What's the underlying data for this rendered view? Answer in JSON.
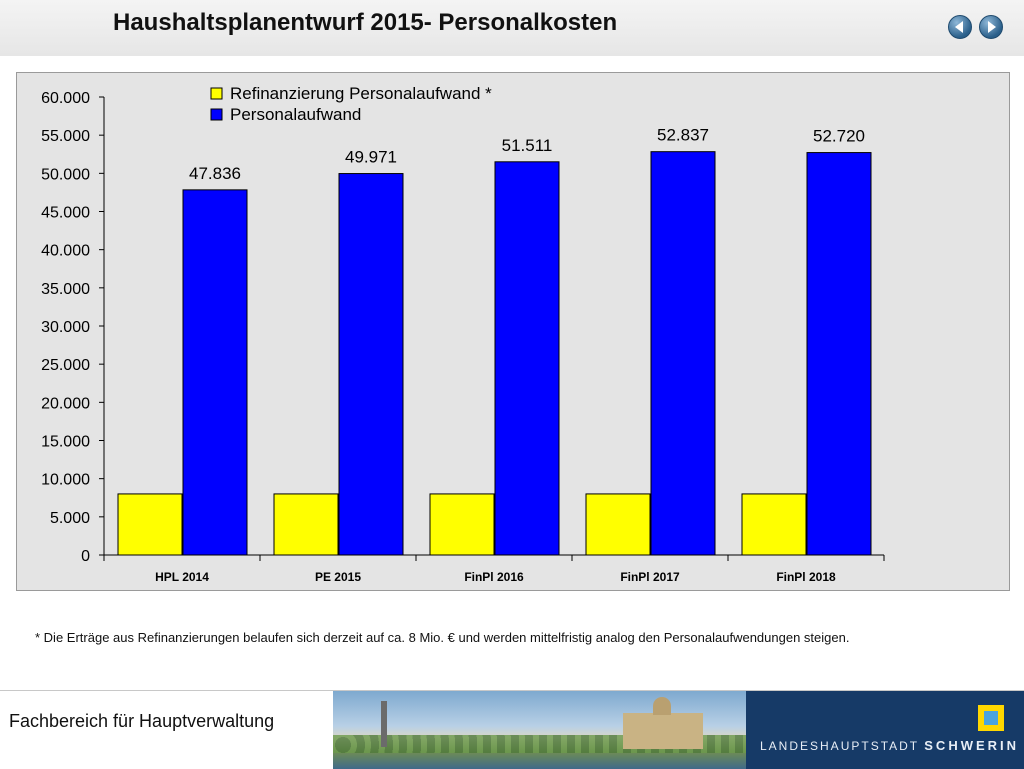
{
  "title": "Haushaltsplanentwurf 2015- Personalkosten",
  "nav": {
    "back_icon": "arrow-left-icon",
    "forward_icon": "arrow-right-icon"
  },
  "footnote": "* Die Erträge aus Refinanzierungen belaufen sich derzeit auf ca. 8 Mio. € und werden mittelfristig analog den Personalaufwendungen steigen.",
  "footer": {
    "department": "Fachbereich für Hauptverwaltung",
    "brand_prefix": "LANDESHAUPTSTADT",
    "brand_name": "SCHWERIN"
  },
  "colors": {
    "refinanzierung": "#ffff00",
    "personalaufwand": "#0000ff",
    "plot_bg": "#e4e4e4",
    "header_bg": "#eeeeee",
    "footer_brand_bg": "#163a67"
  },
  "chart_data": {
    "type": "bar",
    "categories": [
      "HPL 2014",
      "PE 2015",
      "FinPl 2016",
      "FinPl 2017",
      "FinPl 2018"
    ],
    "series": [
      {
        "name": "Refinanzierung Personalaufwand *",
        "values": [
          8000,
          8000,
          8000,
          8000,
          8000
        ],
        "color": "#ffff00"
      },
      {
        "name": "Personalaufwand",
        "values": [
          47836,
          49971,
          51511,
          52837,
          52720
        ],
        "color": "#0000ff",
        "data_labels": [
          "47.836",
          "49.971",
          "51.511",
          "52.837",
          "52.720"
        ]
      }
    ],
    "ylim": [
      0,
      60000
    ],
    "yticks": [
      0,
      5000,
      10000,
      15000,
      20000,
      25000,
      30000,
      35000,
      40000,
      45000,
      50000,
      55000,
      60000
    ],
    "ytick_labels": [
      "0",
      "5.000",
      "10.000",
      "15.000",
      "20.000",
      "25.000",
      "30.000",
      "35.000",
      "40.000",
      "45.000",
      "50.000",
      "55.000",
      "60.000"
    ],
    "legend_position": "top-center",
    "grid": false
  }
}
